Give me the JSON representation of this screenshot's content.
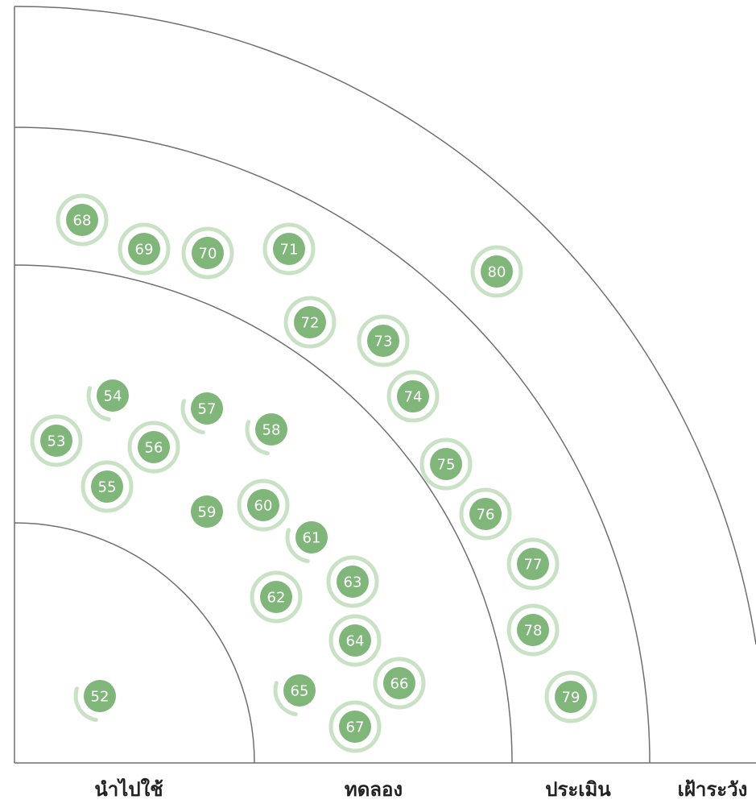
{
  "colors": {
    "blip_fill": "#80b67a",
    "blip_halo": "#c9e2c5",
    "axis": "#6f6f6f",
    "label": "#222222"
  },
  "rings": [
    {
      "label": "นำไปใช้"
    },
    {
      "label": "ทดลอง"
    },
    {
      "label": "ประเมิน"
    },
    {
      "label": "เฝ้าระวัง"
    }
  ],
  "halo_styles": {
    "full": "full circle outline (new/moved)",
    "arc": "partial arc (moved)",
    "none": "no outline (unchanged)"
  },
  "blips": [
    {
      "id": "52",
      "ring": 0,
      "halo": "arc"
    },
    {
      "id": "53",
      "ring": 1,
      "halo": "full"
    },
    {
      "id": "54",
      "ring": 1,
      "halo": "arc"
    },
    {
      "id": "55",
      "ring": 1,
      "halo": "full"
    },
    {
      "id": "56",
      "ring": 1,
      "halo": "full"
    },
    {
      "id": "57",
      "ring": 1,
      "halo": "arc"
    },
    {
      "id": "58",
      "ring": 1,
      "halo": "arc"
    },
    {
      "id": "59",
      "ring": 1,
      "halo": "none"
    },
    {
      "id": "60",
      "ring": 1,
      "halo": "full"
    },
    {
      "id": "61",
      "ring": 1,
      "halo": "arc"
    },
    {
      "id": "62",
      "ring": 1,
      "halo": "full"
    },
    {
      "id": "63",
      "ring": 1,
      "halo": "full"
    },
    {
      "id": "64",
      "ring": 1,
      "halo": "full"
    },
    {
      "id": "65",
      "ring": 1,
      "halo": "arc"
    },
    {
      "id": "66",
      "ring": 1,
      "halo": "full"
    },
    {
      "id": "67",
      "ring": 1,
      "halo": "full"
    },
    {
      "id": "68",
      "ring": 2,
      "halo": "full"
    },
    {
      "id": "69",
      "ring": 2,
      "halo": "full"
    },
    {
      "id": "70",
      "ring": 2,
      "halo": "full"
    },
    {
      "id": "71",
      "ring": 2,
      "halo": "full"
    },
    {
      "id": "72",
      "ring": 2,
      "halo": "full"
    },
    {
      "id": "73",
      "ring": 2,
      "halo": "full"
    },
    {
      "id": "74",
      "ring": 2,
      "halo": "full"
    },
    {
      "id": "75",
      "ring": 2,
      "halo": "full"
    },
    {
      "id": "76",
      "ring": 2,
      "halo": "full"
    },
    {
      "id": "77",
      "ring": 2,
      "halo": "full"
    },
    {
      "id": "78",
      "ring": 2,
      "halo": "full"
    },
    {
      "id": "79",
      "ring": 2,
      "halo": "full"
    },
    {
      "id": "80",
      "ring": 3,
      "halo": "full"
    }
  ]
}
